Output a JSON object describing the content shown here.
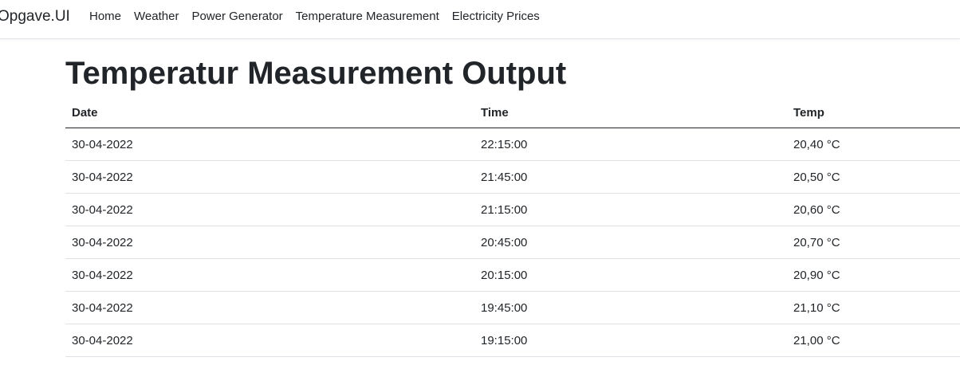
{
  "navbar": {
    "brand": "Opgave.UI",
    "links": [
      "Home",
      "Weather",
      "Power Generator",
      "Temperature Measurement",
      "Electricity Prices"
    ]
  },
  "page": {
    "title": "Temperatur Measurement Output"
  },
  "table": {
    "headers": [
      "Date",
      "Time",
      "Temp"
    ],
    "rows": [
      [
        "30-04-2022",
        "22:15:00",
        "20,40 °C"
      ],
      [
        "30-04-2022",
        "21:45:00",
        "20,50 °C"
      ],
      [
        "30-04-2022",
        "21:15:00",
        "20,60 °C"
      ],
      [
        "30-04-2022",
        "20:45:00",
        "20,70 °C"
      ],
      [
        "30-04-2022",
        "20:15:00",
        "20,90 °C"
      ],
      [
        "30-04-2022",
        "19:45:00",
        "21,10 °C"
      ],
      [
        "30-04-2022",
        "19:15:00",
        "21,00 °C"
      ]
    ]
  }
}
